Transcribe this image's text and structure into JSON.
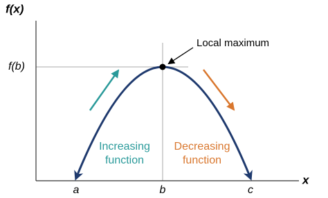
{
  "axes": {
    "y_label": "f(x)",
    "x_label": "x"
  },
  "x_ticks": [
    "a",
    "b",
    "c"
  ],
  "y_tick": "f(b)",
  "annotation": "Local maximum",
  "increasing": [
    "Increasing",
    "function"
  ],
  "decreasing": [
    "Decreasing",
    "function"
  ]
}
